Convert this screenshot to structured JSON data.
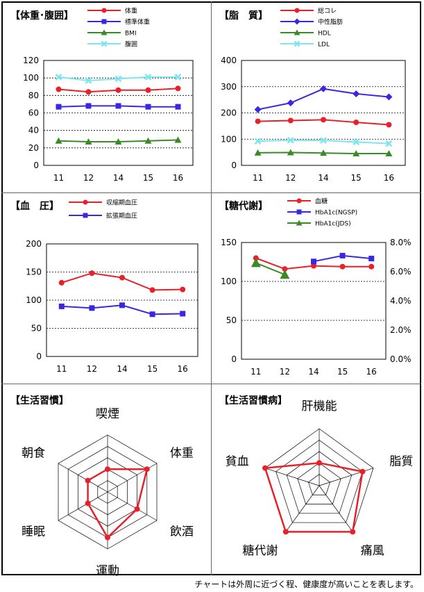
{
  "footnote": "チャートは外周に近づく程、健康度が高いことを表します。",
  "chart_data": [
    {
      "type": "line",
      "title": "【体重･腹囲】",
      "categories": [
        "11",
        "12",
        "14",
        "15",
        "16"
      ],
      "ylim": [
        0,
        120
      ],
      "yticks": [
        0,
        20,
        40,
        60,
        80,
        100,
        120
      ],
      "series": [
        {
          "name": "体重",
          "color": "#e8202a",
          "marker": "circle",
          "values": [
            87,
            84,
            86,
            86,
            88
          ]
        },
        {
          "name": "標準体重",
          "color": "#3a28e0",
          "marker": "square",
          "values": [
            67,
            68,
            68,
            67,
            67
          ]
        },
        {
          "name": "BMI",
          "color": "#3a8a26",
          "marker": "triangle",
          "values": [
            28,
            27,
            27,
            28,
            29
          ]
        },
        {
          "name": "腹囲",
          "color": "#7fe6f0",
          "marker": "x",
          "values": [
            101,
            97,
            99,
            101,
            101
          ]
        }
      ]
    },
    {
      "type": "line",
      "title": "【脂　質】",
      "categories": [
        "11",
        "12",
        "14",
        "15",
        "16"
      ],
      "ylim": [
        0,
        400
      ],
      "yticks": [
        0,
        100,
        200,
        300,
        400
      ],
      "series": [
        {
          "name": "総コレ",
          "color": "#e8202a",
          "marker": "circle",
          "values": [
            168,
            171,
            174,
            164,
            155
          ]
        },
        {
          "name": "中性脂肪",
          "color": "#3a28e0",
          "marker": "diamond",
          "values": [
            213,
            238,
            292,
            273,
            261
          ]
        },
        {
          "name": "HDL",
          "color": "#3a8a26",
          "marker": "triangle",
          "values": [
            48,
            49,
            47,
            45,
            45
          ]
        },
        {
          "name": "LDL",
          "color": "#7fe6f0",
          "marker": "x",
          "values": [
            92,
            96,
            95,
            89,
            83
          ]
        }
      ]
    },
    {
      "type": "line",
      "title": "【血　圧】",
      "categories": [
        "11",
        "12",
        "14",
        "15",
        "16"
      ],
      "ylim": [
        0,
        200
      ],
      "yticks": [
        0,
        50,
        100,
        150,
        200
      ],
      "series": [
        {
          "name": "収縮期血圧",
          "color": "#e8202a",
          "marker": "circle",
          "values": [
            131,
            148,
            140,
            118,
            119
          ]
        },
        {
          "name": "拡張期血圧",
          "color": "#3a28e0",
          "marker": "square",
          "values": [
            89,
            86,
            91,
            75,
            76
          ]
        }
      ]
    },
    {
      "type": "line",
      "title": "【糖代謝】",
      "categories": [
        "11",
        "12",
        "14",
        "15",
        "16"
      ],
      "ylim": [
        0,
        150
      ],
      "yticks": [
        0,
        50,
        100,
        150
      ],
      "y2lim": [
        0,
        8
      ],
      "y2ticks": [
        "0.0%",
        "2.0%",
        "4.0%",
        "6.0%",
        "8.0%"
      ],
      "series": [
        {
          "name": "血糖",
          "color": "#e8202a",
          "marker": "circle",
          "axis": "left",
          "values": [
            130,
            116,
            120,
            119,
            119
          ]
        },
        {
          "name": "HbA1c(NGSP)",
          "color": "#3a28e0",
          "marker": "square",
          "axis": "right",
          "values": [
            null,
            null,
            6.7,
            7.1,
            6.9
          ]
        },
        {
          "name": "HbA1c(JDS)",
          "color": "#3a8a26",
          "marker": "triangle",
          "axis": "right",
          "values": [
            6.6,
            5.8,
            null,
            null,
            null
          ]
        }
      ]
    },
    {
      "type": "radar",
      "title": "【生活習慣】",
      "axes": [
        "喫煙",
        "体重",
        "飲酒",
        "運動",
        "睡眠",
        "朝食"
      ],
      "levels": 5,
      "values": [
        2,
        4,
        3,
        4,
        2,
        2
      ],
      "color": "#e8202a"
    },
    {
      "type": "radar",
      "title": "【生活習慣病】",
      "axes": [
        "肝機能",
        "脂質",
        "痛風",
        "糖代謝",
        "貧血"
      ],
      "levels": 5,
      "values": [
        2,
        4,
        5,
        5,
        5
      ],
      "color": "#e8202a"
    }
  ]
}
